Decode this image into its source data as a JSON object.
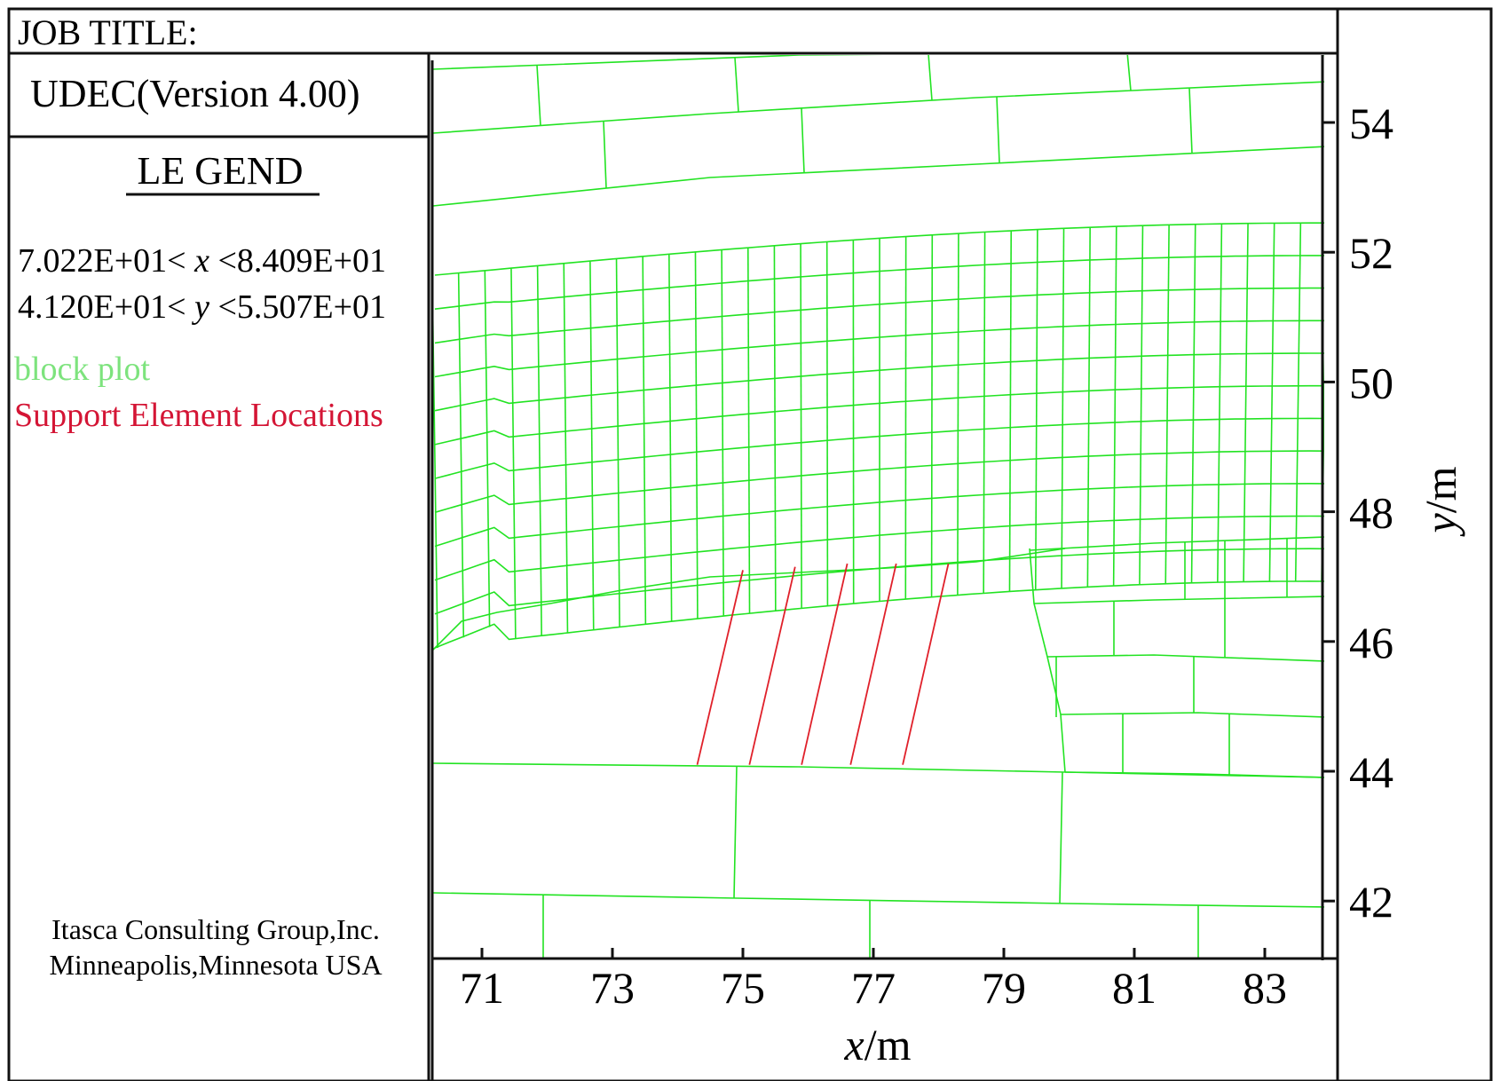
{
  "header": {
    "job_title_label": "JOB TITLE:"
  },
  "sidebar": {
    "program": "UDEC(Version 4.00)",
    "legend_heading": "LE GEND",
    "x_range": {
      "lower": "7.022E+01<",
      "var": "x",
      "upper": "<8.409E+01"
    },
    "y_range": {
      "lower": "4.120E+01<",
      "var": "y",
      "upper": "<5.507E+01"
    },
    "legend_items": [
      {
        "label": "block plot",
        "color": "#7de37d"
      },
      {
        "label": "Support Element Locations",
        "color": "#d41535"
      }
    ],
    "credit_line1": "Itasca Consulting Group,Inc.",
    "credit_line2": "Minneapolis,Minnesota USA"
  },
  "plot": {
    "x_axis": {
      "label_var": "x",
      "label_unit": "/m",
      "ticks": [
        "71",
        "73",
        "75",
        "77",
        "79",
        "81",
        "83"
      ]
    },
    "y_axis": {
      "label_var": "y",
      "label_unit": "/m",
      "ticks": [
        "54",
        "52",
        "50",
        "48",
        "46",
        "44",
        "42"
      ]
    },
    "block_color": "#22e322",
    "support_color": "#e0202a",
    "support_elements": [
      {
        "x_top": 75.0,
        "y_top": 47.1,
        "x_bot": 74.3,
        "y_bot": 44.1
      },
      {
        "x_top": 75.8,
        "y_top": 47.15,
        "x_bot": 75.1,
        "y_bot": 44.1
      },
      {
        "x_top": 76.6,
        "y_top": 47.2,
        "x_bot": 75.9,
        "y_bot": 44.1
      },
      {
        "x_top": 77.35,
        "y_top": 47.2,
        "x_bot": 76.65,
        "y_bot": 44.1
      },
      {
        "x_top": 78.15,
        "y_top": 47.2,
        "x_bot": 77.45,
        "y_bot": 44.1
      }
    ]
  }
}
